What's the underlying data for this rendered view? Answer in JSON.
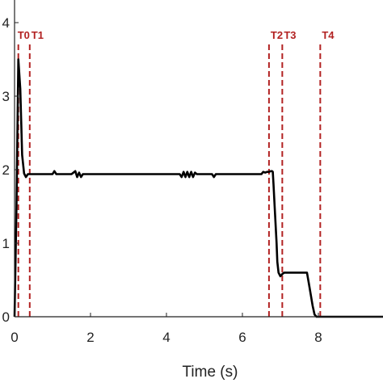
{
  "chart_data": {
    "type": "line",
    "title": "",
    "xlabel": "Time (s)",
    "ylabel": "",
    "xlim": [
      0,
      10
    ],
    "ylim": [
      0,
      4
    ],
    "x_ticks": [
      0,
      2,
      4,
      6,
      8
    ],
    "y_ticks": [
      0,
      1,
      2,
      3,
      4
    ],
    "grid": false,
    "series": [
      {
        "color": "#000000",
        "x": [
          0,
          0.05,
          0.1,
          0.15,
          0.2,
          0.25,
          0.3,
          0.35,
          0.5,
          1.0,
          1.05,
          1.1,
          1.5,
          1.6,
          1.65,
          1.7,
          1.75,
          1.8,
          2.0,
          3.0,
          4.0,
          4.35,
          4.4,
          4.45,
          4.5,
          4.55,
          4.6,
          4.65,
          4.7,
          4.75,
          4.8,
          5.0,
          5.2,
          5.25,
          5.3,
          6.0,
          6.5,
          6.55,
          6.6,
          6.65,
          6.7,
          6.75,
          6.78,
          6.8,
          6.82,
          6.85,
          6.9,
          6.92,
          6.95,
          7.0,
          7.05,
          7.1,
          7.3,
          7.7,
          7.75,
          7.8,
          7.85,
          7.9,
          7.95,
          8.5,
          9.0,
          10.0
        ],
        "y": [
          0,
          1.5,
          3.5,
          3.1,
          2.2,
          1.95,
          1.9,
          1.94,
          1.94,
          1.94,
          1.98,
          1.94,
          1.94,
          1.98,
          1.9,
          1.96,
          1.9,
          1.94,
          1.94,
          1.94,
          1.94,
          1.94,
          1.9,
          1.97,
          1.9,
          1.97,
          1.9,
          1.97,
          1.9,
          1.96,
          1.94,
          1.94,
          1.94,
          1.9,
          1.94,
          1.94,
          1.94,
          1.97,
          1.96,
          1.97,
          1.97,
          1.98,
          1.98,
          1.97,
          1.8,
          1.5,
          1.0,
          0.75,
          0.6,
          0.55,
          0.58,
          0.6,
          0.6,
          0.6,
          0.45,
          0.3,
          0.15,
          0.03,
          0.0,
          0.0,
          0.0,
          0.0
        ]
      }
    ],
    "markers": [
      {
        "label": "T0",
        "x": 0.1
      },
      {
        "label": "T1",
        "x": 0.4
      },
      {
        "label": "T2",
        "x": 6.7
      },
      {
        "label": "T3",
        "x": 7.05
      },
      {
        "label": "T4",
        "x": 8.05
      }
    ],
    "marker_color": "#b22222"
  }
}
